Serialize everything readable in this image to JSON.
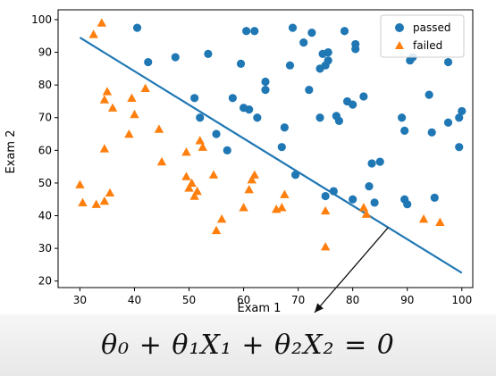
{
  "equation": "θ₀ + θ₁X₁ + θ₂X₂ = 0",
  "chart_data": {
    "type": "scatter",
    "xlabel": "Exam 1",
    "ylabel": "Exam 2",
    "xlim": [
      26,
      102
    ],
    "ylim": [
      18,
      103
    ],
    "xticks": [
      30,
      40,
      50,
      60,
      70,
      80,
      90,
      100
    ],
    "yticks": [
      20,
      30,
      40,
      50,
      60,
      70,
      80,
      90,
      100
    ],
    "grid": false,
    "legend_position": "top-right",
    "series": [
      {
        "name": "passed",
        "marker": "circle",
        "color": "#1f77b4",
        "points": [
          [
            40.5,
            97.5
          ],
          [
            42.5,
            87.0
          ],
          [
            47.5,
            88.5
          ],
          [
            51,
            76
          ],
          [
            52,
            70
          ],
          [
            53.5,
            89.5
          ],
          [
            55,
            65
          ],
          [
            57,
            60
          ],
          [
            58,
            76
          ],
          [
            59.5,
            86.5
          ],
          [
            60,
            73
          ],
          [
            60.5,
            96.5
          ],
          [
            61,
            72.5
          ],
          [
            62,
            96.5
          ],
          [
            62.5,
            70
          ],
          [
            64,
            81
          ],
          [
            64,
            78.5
          ],
          [
            67,
            61
          ],
          [
            67.5,
            67
          ],
          [
            68.5,
            86
          ],
          [
            69,
            97.5
          ],
          [
            69.5,
            52.5
          ],
          [
            71,
            93
          ],
          [
            72,
            78.5
          ],
          [
            72.5,
            96
          ],
          [
            74,
            85
          ],
          [
            74,
            70
          ],
          [
            74.5,
            89.5
          ],
          [
            75,
            86
          ],
          [
            75,
            46
          ],
          [
            75.5,
            90
          ],
          [
            75.5,
            87.5
          ],
          [
            76.5,
            47.5
          ],
          [
            77,
            70.5
          ],
          [
            77.5,
            69
          ],
          [
            78.5,
            96.5
          ],
          [
            79,
            75
          ],
          [
            80,
            74
          ],
          [
            80,
            45
          ],
          [
            80.5,
            92.5
          ],
          [
            80.5,
            91
          ],
          [
            82,
            76.5
          ],
          [
            83,
            49
          ],
          [
            83.5,
            56
          ],
          [
            84,
            44
          ],
          [
            85,
            56.5
          ],
          [
            89,
            70
          ],
          [
            89.5,
            66
          ],
          [
            89.5,
            45
          ],
          [
            90,
            43.5
          ],
          [
            90.5,
            87.5
          ],
          [
            91,
            88.5
          ],
          [
            94,
            77
          ],
          [
            94.5,
            65.5
          ],
          [
            95,
            45.5
          ],
          [
            97.5,
            68.5
          ],
          [
            97.5,
            87
          ],
          [
            99.5,
            70
          ],
          [
            99.5,
            61
          ],
          [
            100,
            72
          ]
        ]
      },
      {
        "name": "failed",
        "marker": "triangle",
        "color": "#ff7f0e",
        "points": [
          [
            30,
            49.5
          ],
          [
            30.5,
            44
          ],
          [
            32.5,
            95.5
          ],
          [
            33,
            43.5
          ],
          [
            34,
            99
          ],
          [
            34.5,
            44.5
          ],
          [
            34.5,
            75.5
          ],
          [
            34.5,
            60.5
          ],
          [
            35,
            78
          ],
          [
            35.5,
            47
          ],
          [
            36,
            73
          ],
          [
            39,
            65
          ],
          [
            39.5,
            76
          ],
          [
            40,
            71
          ],
          [
            42,
            79
          ],
          [
            44.5,
            66.5
          ],
          [
            45,
            56.5
          ],
          [
            49.5,
            52
          ],
          [
            49.5,
            59.5
          ],
          [
            50,
            48.5
          ],
          [
            50.5,
            50
          ],
          [
            51,
            46
          ],
          [
            51.5,
            47.5
          ],
          [
            52,
            63
          ],
          [
            52.5,
            61
          ],
          [
            54.5,
            52.5
          ],
          [
            55,
            35.5
          ],
          [
            56,
            39
          ],
          [
            60,
            42.5
          ],
          [
            61,
            48
          ],
          [
            61.5,
            51
          ],
          [
            62,
            52.5
          ],
          [
            66,
            42
          ],
          [
            67,
            42.5
          ],
          [
            67.5,
            46.5
          ],
          [
            75,
            41.5
          ],
          [
            75,
            30.5
          ],
          [
            82,
            42.5
          ],
          [
            82.5,
            40.5
          ],
          [
            93,
            39
          ],
          [
            96,
            38
          ]
        ]
      }
    ],
    "decision_boundary": {
      "x": [
        30,
        100
      ],
      "y": [
        94.5,
        22.5
      ],
      "color": "#1f77b4"
    }
  }
}
